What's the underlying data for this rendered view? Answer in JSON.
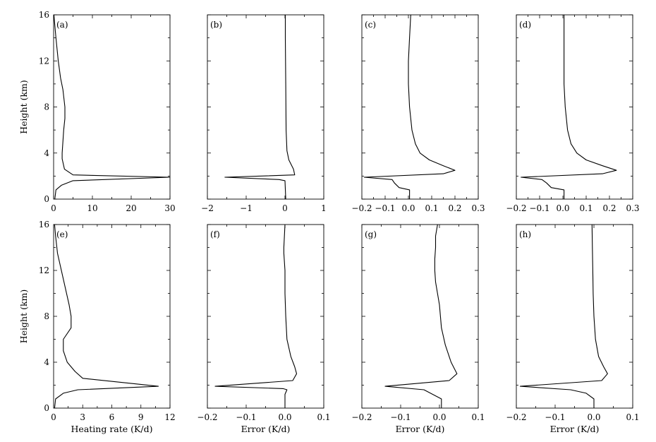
{
  "chart_data": [
    {
      "type": "line",
      "panel_label": "(a)",
      "ylabel": "Height (km)",
      "xlabel": "",
      "xlim": [
        0,
        30
      ],
      "ylim": [
        0,
        16
      ],
      "xticks": [
        "0",
        "10",
        "20",
        "30"
      ],
      "yticks": [
        "0",
        "4",
        "8",
        "12",
        "16"
      ],
      "series": [
        {
          "points": [
            [
              0.3,
              0
            ],
            [
              0.6,
              0.8
            ],
            [
              2,
              1.2
            ],
            [
              5,
              1.6
            ],
            [
              30,
              1.9
            ],
            [
              5,
              2.1
            ],
            [
              2.8,
              2.6
            ],
            [
              2.2,
              3.5
            ],
            [
              2.2,
              4
            ],
            [
              2.6,
              6
            ],
            [
              2.9,
              7
            ],
            [
              2.9,
              8
            ],
            [
              2.4,
              9.5
            ],
            [
              1.8,
              10.5
            ],
            [
              1.2,
              12
            ],
            [
              0.6,
              14
            ],
            [
              0.2,
              15.5
            ],
            [
              0.1,
              16
            ]
          ]
        }
      ]
    },
    {
      "type": "line",
      "panel_label": "(b)",
      "xlabel": "",
      "xlim": [
        -2,
        1
      ],
      "ylim": [
        0,
        16
      ],
      "xticks": [
        "−2",
        "−1",
        "0",
        "1"
      ],
      "series": [
        {
          "points": [
            [
              0.02,
              0
            ],
            [
              0,
              1.6
            ],
            [
              -0.15,
              1.7
            ],
            [
              -1.55,
              1.9
            ],
            [
              0.25,
              2.1
            ],
            [
              0.22,
              2.6
            ],
            [
              0.1,
              3.4
            ],
            [
              0.05,
              4.2
            ],
            [
              0.03,
              6
            ],
            [
              0.02,
              10
            ],
            [
              0.01,
              14
            ],
            [
              0.01,
              16
            ]
          ]
        }
      ]
    },
    {
      "type": "line",
      "panel_label": "(c)",
      "xlabel": "",
      "xlim": [
        -0.2,
        0.3
      ],
      "ylim": [
        0,
        16
      ],
      "xticks": [
        "−0.2",
        "−0.1",
        "0.0",
        "0.1",
        "0.2",
        "0.3"
      ],
      "series": [
        {
          "points": [
            [
              0.005,
              0
            ],
            [
              0.005,
              0.8
            ],
            [
              -0.04,
              1
            ],
            [
              -0.06,
              1.4
            ],
            [
              -0.07,
              1.7
            ],
            [
              -0.19,
              1.9
            ],
            [
              0.15,
              2.2
            ],
            [
              0.2,
              2.5
            ],
            [
              0.15,
              2.9
            ],
            [
              0.09,
              3.4
            ],
            [
              0.05,
              4
            ],
            [
              0.03,
              4.8
            ],
            [
              0.015,
              6
            ],
            [
              0.005,
              8
            ],
            [
              0,
              10
            ],
            [
              0,
              12
            ],
            [
              0.005,
              14
            ],
            [
              0.01,
              16
            ]
          ]
        }
      ]
    },
    {
      "type": "line",
      "panel_label": "(d)",
      "xlabel": "",
      "xlim": [
        -0.2,
        0.3
      ],
      "ylim": [
        0,
        16
      ],
      "xticks": [
        "−0.2",
        "−0.1",
        "0.0",
        "0.1",
        "0.2",
        "0.3"
      ],
      "series": [
        {
          "points": [
            [
              0.005,
              0
            ],
            [
              0.005,
              0.8
            ],
            [
              -0.05,
              1
            ],
            [
              -0.07,
              1.4
            ],
            [
              -0.09,
              1.7
            ],
            [
              -0.18,
              1.9
            ],
            [
              0.17,
              2.2
            ],
            [
              0.23,
              2.5
            ],
            [
              0.17,
              2.9
            ],
            [
              0.1,
              3.4
            ],
            [
              0.06,
              4
            ],
            [
              0.035,
              4.8
            ],
            [
              0.02,
              6
            ],
            [
              0.01,
              8
            ],
            [
              0.005,
              10
            ],
            [
              0.005,
              12
            ],
            [
              0.005,
              14
            ],
            [
              0.005,
              16
            ]
          ]
        }
      ]
    },
    {
      "type": "line",
      "panel_label": "(e)",
      "ylabel": "Height (km)",
      "xlabel": "Heating rate (K/d)",
      "xlim": [
        0,
        12
      ],
      "ylim": [
        0,
        16
      ],
      "xticks": [
        "0",
        "3",
        "6",
        "9",
        "12"
      ],
      "yticks": [
        "0",
        "4",
        "8",
        "12",
        "16"
      ],
      "series": [
        {
          "points": [
            [
              0.1,
              0
            ],
            [
              0.2,
              0.8
            ],
            [
              1,
              1.3
            ],
            [
              2.5,
              1.6
            ],
            [
              10.8,
              1.9
            ],
            [
              3,
              2.6
            ],
            [
              2.2,
              3.2
            ],
            [
              1.4,
              4
            ],
            [
              1,
              5
            ],
            [
              1,
              6
            ],
            [
              1.8,
              7
            ],
            [
              1.8,
              8
            ],
            [
              1.6,
              9
            ],
            [
              1.2,
              10.5
            ],
            [
              0.8,
              12
            ],
            [
              0.4,
              13.5
            ],
            [
              0.2,
              15
            ],
            [
              0.1,
              16
            ]
          ]
        }
      ]
    },
    {
      "type": "line",
      "panel_label": "(f)",
      "xlabel": "Error (K/d)",
      "xlim": [
        -0.2,
        0.1
      ],
      "ylim": [
        0,
        16
      ],
      "xticks": [
        "−0.2",
        "−0.1",
        "0.0",
        "0.1"
      ],
      "series": [
        {
          "points": [
            [
              0,
              0
            ],
            [
              0,
              1.2
            ],
            [
              0.005,
              1.6
            ],
            [
              -0.005,
              1.7
            ],
            [
              -0.18,
              1.9
            ],
            [
              0.02,
              2.4
            ],
            [
              0.03,
              3
            ],
            [
              0.025,
              3.6
            ],
            [
              0.015,
              4.5
            ],
            [
              0.005,
              6
            ],
            [
              0.002,
              8
            ],
            [
              0,
              10
            ],
            [
              0,
              12
            ],
            [
              -0.003,
              13.5
            ],
            [
              -0.003,
              14
            ],
            [
              0,
              16
            ]
          ]
        }
      ]
    },
    {
      "type": "line",
      "panel_label": "(g)",
      "xlabel": "Error (K/d)",
      "xlim": [
        -0.2,
        0.1
      ],
      "ylim": [
        0,
        16
      ],
      "xticks": [
        "−0.2",
        "−0.1",
        "0.0",
        "0.1"
      ],
      "series": [
        {
          "points": [
            [
              0.005,
              0
            ],
            [
              0.005,
              0.8
            ],
            [
              -0.04,
              1.6
            ],
            [
              -0.14,
              1.9
            ],
            [
              0.025,
              2.4
            ],
            [
              0.045,
              3
            ],
            [
              0.03,
              4
            ],
            [
              0.015,
              5.5
            ],
            [
              0.005,
              7
            ],
            [
              0,
              9
            ],
            [
              -0.01,
              11
            ],
            [
              -0.012,
              12
            ],
            [
              -0.012,
              13
            ],
            [
              -0.01,
              14
            ],
            [
              -0.01,
              15
            ],
            [
              -0.005,
              16
            ]
          ]
        }
      ]
    },
    {
      "type": "line",
      "panel_label": "(h)",
      "xlabel": "Error (K/d)",
      "xlim": [
        -0.2,
        0.1
      ],
      "ylim": [
        0,
        16
      ],
      "xticks": [
        "−0.2",
        "−0.1",
        "0.0",
        "0.1"
      ],
      "series": [
        {
          "points": [
            [
              0,
              0
            ],
            [
              0,
              0.8
            ],
            [
              -0.02,
              1.3
            ],
            [
              -0.06,
              1.6
            ],
            [
              -0.19,
              1.9
            ],
            [
              0.02,
              2.4
            ],
            [
              0.035,
              3
            ],
            [
              0.025,
              3.6
            ],
            [
              0.012,
              4.5
            ],
            [
              0.004,
              6
            ],
            [
              0,
              8
            ],
            [
              -0.002,
              10
            ],
            [
              -0.003,
              12
            ],
            [
              -0.004,
              14
            ],
            [
              -0.005,
              16
            ]
          ]
        }
      ]
    }
  ]
}
